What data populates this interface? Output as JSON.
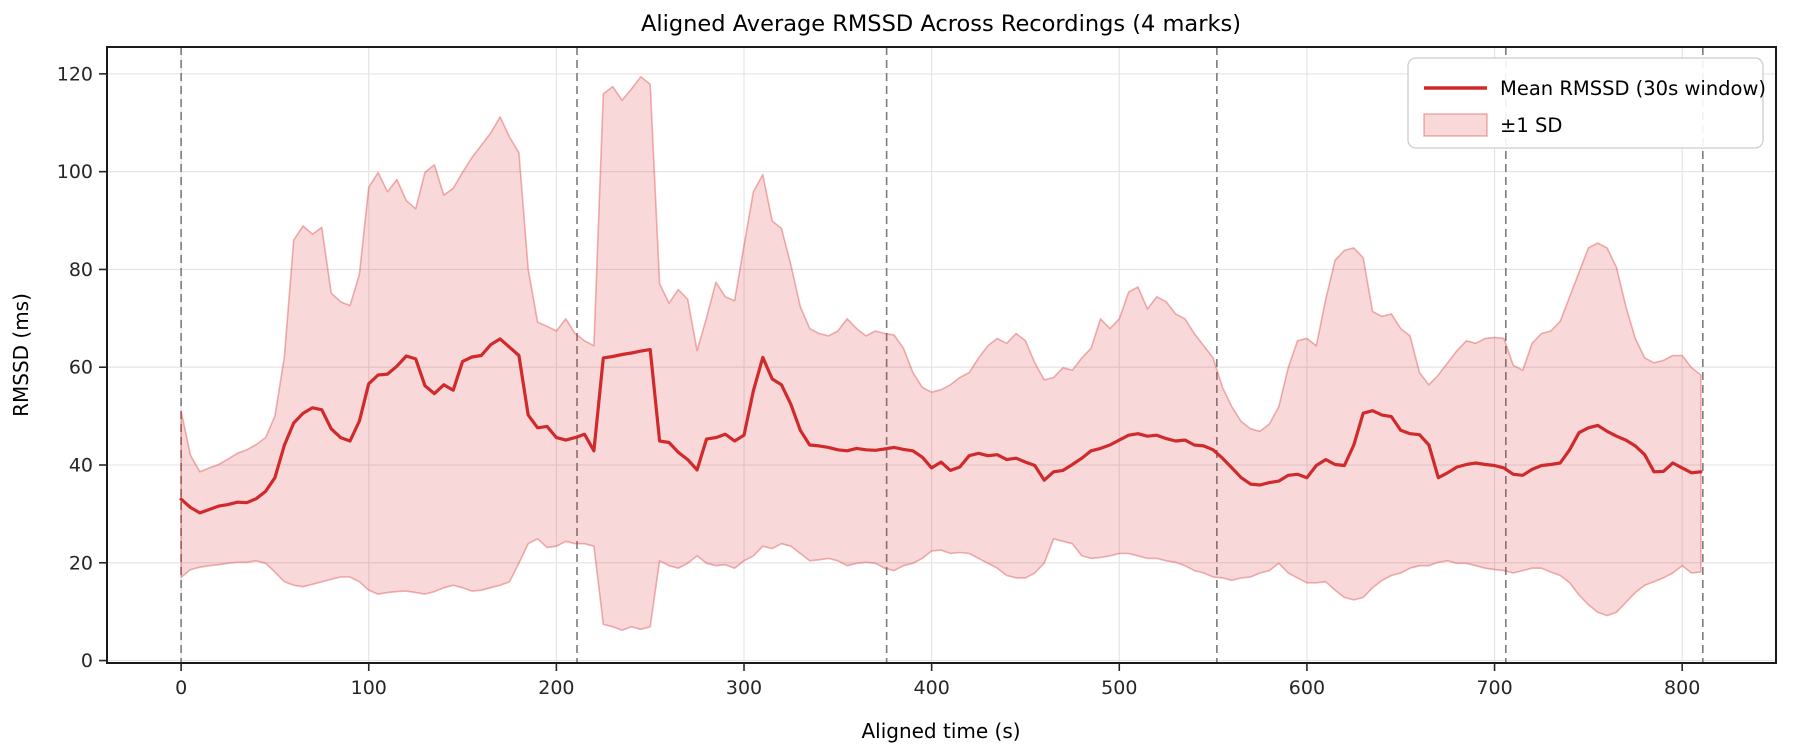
{
  "chart_data": {
    "type": "line",
    "title": "Aligned Average RMSSD Across Recordings (4 marks)",
    "xlabel": "Aligned time (s)",
    "ylabel": "RMSSD (ms)",
    "xlim": [
      -39.5,
      850
    ],
    "ylim": [
      -0.5,
      125.5
    ],
    "xticks": [
      0,
      100,
      200,
      300,
      400,
      500,
      600,
      700,
      800
    ],
    "yticks": [
      0,
      20,
      40,
      60,
      80,
      100,
      120
    ],
    "grid": true,
    "grid_color": "#e3e3e3",
    "mark_vlines": [
      0,
      211,
      376,
      552,
      706,
      811
    ],
    "mark_vline_color": "#7c7c7c",
    "line_color": "#d02a2d",
    "band_fill_color": "rgba(214,39,40,0.18)",
    "band_edge_color": "rgba(214,39,40,0.35)",
    "legend": {
      "position": "upper right",
      "entries": [
        {
          "label": "Mean RMSSD (30s window)",
          "type": "line"
        },
        {
          "label": "±1 SD",
          "type": "patch"
        }
      ]
    },
    "x_start": 0,
    "x_step": 5,
    "x_end": 810,
    "series": [
      {
        "name": "Mean RMSSD (30s window)",
        "values": [
          33.0,
          31.3,
          30.2,
          30.9,
          31.6,
          31.9,
          32.4,
          32.3,
          33.1,
          34.6,
          37.4,
          44.0,
          48.6,
          50.6,
          51.7,
          51.3,
          47.4,
          45.6,
          44.9,
          49.0,
          56.6,
          58.4,
          58.6,
          60.2,
          62.3,
          61.7,
          56.2,
          54.6,
          56.4,
          55.3,
          61.2,
          62.1,
          62.4,
          64.6,
          65.8,
          64.1,
          62.4,
          50.2,
          47.6,
          47.9,
          45.6,
          45.1,
          45.6,
          46.3,
          42.9,
          61.9,
          62.2,
          62.6,
          62.9,
          63.3,
          63.6,
          44.9,
          44.6,
          42.6,
          41.1,
          39.0,
          45.3,
          45.6,
          46.3,
          44.9,
          46.1,
          55.2,
          62.0,
          57.6,
          56.4,
          52.4,
          47.1,
          44.1,
          43.9,
          43.6,
          43.1,
          42.9,
          43.4,
          43.1,
          43.0,
          43.3,
          43.6,
          43.2,
          42.9,
          41.6,
          39.4,
          40.6,
          38.9,
          39.6,
          41.9,
          42.4,
          41.9,
          42.1,
          41.1,
          41.4,
          40.6,
          39.9,
          36.9,
          38.6,
          38.9,
          40.1,
          41.4,
          42.9,
          43.4,
          44.1,
          45.1,
          46.1,
          46.4,
          45.9,
          46.1,
          45.4,
          44.9,
          45.1,
          44.1,
          43.9,
          43.1,
          41.4,
          39.4,
          37.4,
          36.1,
          35.9,
          36.4,
          36.7,
          37.9,
          38.1,
          37.4,
          39.9,
          41.1,
          40.1,
          39.9,
          44.1,
          50.6,
          51.1,
          50.2,
          49.9,
          47.1,
          46.4,
          46.2,
          44.1,
          37.4,
          38.4,
          39.6,
          40.1,
          40.4,
          40.1,
          39.9,
          39.4,
          38.1,
          37.9,
          39.1,
          39.9,
          40.1,
          40.4,
          43.1,
          46.6,
          47.6,
          48.1,
          46.9,
          45.9,
          45.1,
          43.9,
          42.1,
          38.6,
          38.7,
          40.4,
          39.4,
          38.4,
          38.6
        ]
      },
      {
        "name": "+1 SD (upper bound)",
        "values": [
          51.0,
          42.0,
          38.6,
          39.4,
          40.1,
          41.2,
          42.4,
          43.1,
          44.2,
          45.6,
          50.0,
          62.0,
          86.0,
          88.9,
          87.2,
          88.6,
          75.2,
          73.4,
          72.6,
          79.0,
          96.8,
          99.8,
          95.9,
          98.4,
          94.1,
          92.4,
          99.9,
          101.4,
          95.2,
          96.6,
          99.9,
          102.9,
          105.4,
          107.9,
          111.2,
          107.1,
          103.9,
          80.1,
          69.2,
          68.4,
          67.4,
          69.9,
          66.9,
          65.4,
          64.4,
          115.9,
          117.4,
          114.6,
          116.9,
          119.4,
          117.9,
          77.1,
          73.1,
          75.9,
          73.9,
          63.4,
          70.1,
          77.4,
          74.4,
          73.6,
          84.9,
          95.9,
          99.4,
          89.9,
          88.4,
          80.9,
          72.4,
          67.9,
          66.9,
          66.4,
          67.4,
          69.9,
          67.9,
          66.4,
          67.4,
          66.9,
          66.6,
          63.9,
          58.9,
          55.9,
          54.9,
          55.4,
          56.4,
          57.9,
          58.9,
          61.9,
          64.4,
          65.9,
          64.9,
          66.9,
          65.4,
          60.9,
          57.4,
          57.9,
          59.9,
          59.4,
          61.9,
          63.9,
          69.9,
          67.9,
          69.9,
          75.4,
          76.4,
          71.9,
          74.4,
          73.4,
          70.9,
          69.9,
          66.9,
          64.4,
          61.9,
          55.9,
          51.9,
          48.9,
          47.4,
          46.9,
          48.4,
          51.9,
          59.9,
          65.4,
          65.9,
          64.4,
          73.9,
          81.9,
          83.9,
          84.4,
          82.4,
          71.4,
          70.4,
          70.9,
          67.9,
          66.4,
          58.9,
          56.4,
          58.4,
          60.9,
          63.4,
          65.4,
          64.9,
          65.9,
          66.1,
          65.9,
          60.4,
          59.4,
          64.9,
          66.9,
          67.4,
          69.4,
          74.4,
          79.4,
          84.4,
          85.4,
          84.4,
          80.4,
          72.4,
          65.9,
          61.9,
          60.9,
          61.4,
          62.4,
          62.4,
          59.9,
          58.4
        ]
      },
      {
        "name": "-1 SD (lower bound)",
        "values": [
          17.0,
          18.6,
          19.1,
          19.4,
          19.6,
          19.9,
          20.1,
          20.1,
          20.4,
          19.9,
          18.1,
          16.1,
          15.4,
          15.1,
          15.6,
          16.1,
          16.6,
          17.1,
          17.1,
          16.1,
          14.4,
          13.6,
          13.9,
          14.1,
          14.2,
          13.9,
          13.6,
          14.1,
          14.9,
          15.4,
          14.9,
          14.2,
          14.4,
          14.9,
          15.4,
          16.1,
          19.9,
          23.9,
          24.9,
          23.1,
          23.4,
          24.4,
          23.9,
          23.9,
          23.4,
          7.4,
          6.9,
          6.2,
          6.9,
          6.4,
          6.9,
          20.4,
          19.4,
          18.9,
          19.9,
          21.4,
          19.9,
          19.4,
          19.6,
          18.9,
          20.4,
          21.4,
          23.4,
          22.9,
          23.9,
          23.4,
          21.9,
          20.4,
          20.6,
          20.9,
          20.4,
          19.4,
          19.9,
          20.1,
          19.9,
          18.9,
          18.4,
          19.4,
          19.9,
          20.9,
          22.4,
          22.6,
          21.9,
          22.1,
          21.9,
          20.9,
          19.9,
          18.9,
          17.4,
          16.9,
          16.9,
          17.9,
          19.9,
          24.9,
          24.4,
          23.9,
          21.4,
          20.9,
          21.1,
          21.4,
          21.9,
          21.9,
          21.4,
          20.9,
          20.9,
          20.4,
          20.1,
          19.4,
          18.4,
          17.9,
          17.1,
          16.9,
          16.4,
          16.9,
          17.1,
          17.9,
          18.4,
          19.9,
          17.9,
          16.9,
          15.9,
          15.9,
          16.1,
          14.4,
          12.9,
          12.4,
          12.9,
          14.9,
          16.4,
          17.4,
          17.9,
          18.9,
          19.4,
          19.4,
          20.1,
          20.4,
          19.9,
          19.9,
          19.4,
          18.9,
          18.6,
          18.4,
          17.9,
          18.4,
          18.9,
          18.9,
          18.1,
          17.4,
          15.9,
          13.4,
          11.4,
          9.9,
          9.2,
          9.9,
          11.9,
          13.9,
          15.4,
          16.1,
          16.9,
          17.9,
          19.4,
          17.9,
          18.1
        ]
      }
    ]
  }
}
